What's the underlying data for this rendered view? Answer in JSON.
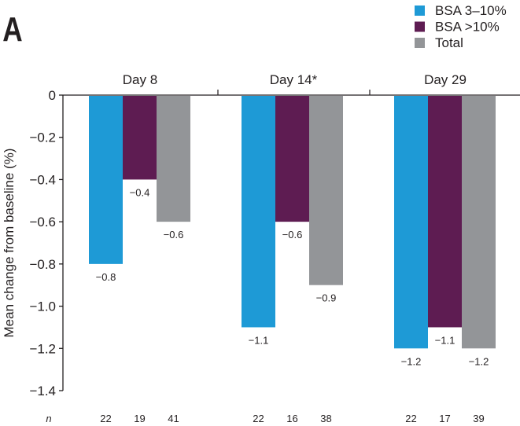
{
  "panel_label": "A",
  "chart_data": {
    "type": "bar",
    "title": "",
    "xlabel": "",
    "ylabel": "Mean change from baseline (%)",
    "ylim": [
      -1.4,
      0
    ],
    "yticks": [
      0,
      -0.2,
      -0.4,
      -0.6,
      -0.8,
      -1.0,
      -1.2,
      -1.4
    ],
    "ytick_labels": [
      "0",
      "−0.2",
      "−0.4",
      "−0.6",
      "−0.8",
      "−1.0",
      "−1.2",
      "−1.4"
    ],
    "categories": [
      "Day 8",
      "Day 14*",
      "Day 29"
    ],
    "legend_position": "top-right",
    "series": [
      {
        "name": "BSA 3–10%",
        "color": "#1e9ad6",
        "values": [
          -0.8,
          -1.1,
          -1.2
        ],
        "labels": [
          "−0.8",
          "−1.1",
          "−1.2"
        ],
        "n": [
          22,
          22,
          22
        ]
      },
      {
        "name": "BSA >10%",
        "color": "#5e1c52",
        "values": [
          -0.4,
          -0.6,
          -1.1
        ],
        "labels": [
          "−0.4",
          "−0.6",
          "−1.1"
        ],
        "n": [
          19,
          16,
          17
        ]
      },
      {
        "name": "Total",
        "color": "#939598",
        "values": [
          -0.6,
          -0.9,
          -1.2
        ],
        "labels": [
          "−0.6",
          "−0.9",
          "−1.2"
        ],
        "n": [
          41,
          38,
          39
        ]
      }
    ],
    "n_label": "n"
  }
}
